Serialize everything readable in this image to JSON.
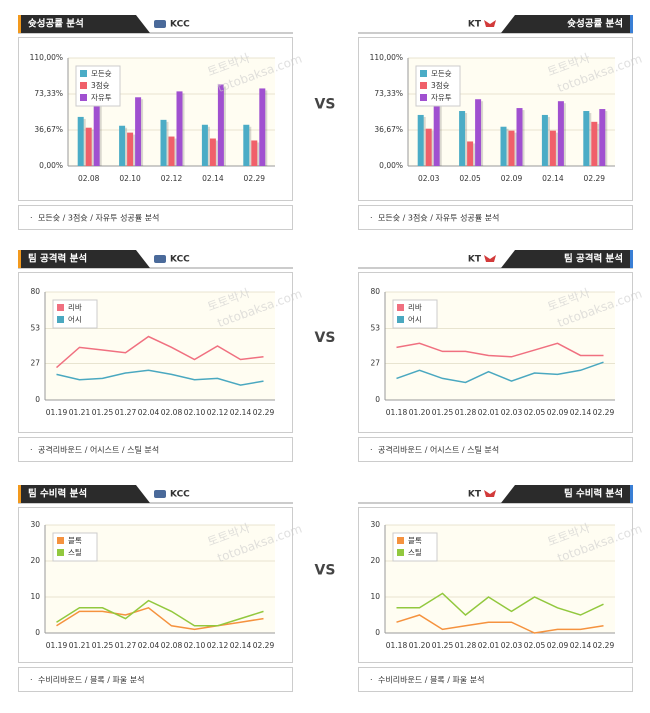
{
  "vs_label": "VS",
  "watermark": [
    "토토박사",
    "totobaksa.com"
  ],
  "chart_data": [
    {
      "type": "bar",
      "title": "슛성공률 분석",
      "team": "KCC",
      "side": "left",
      "footer": "모든슛 / 3점슛 / 자유투 성공률 분석",
      "categories": [
        "02.08",
        "02.10",
        "02.12",
        "02.14",
        "02.29"
      ],
      "series": [
        {
          "name": "모든슛",
          "color": "#4bacc6",
          "values": [
            50,
            41,
            47,
            42,
            42
          ]
        },
        {
          "name": "3점슛",
          "color": "#f0606a",
          "values": [
            39,
            34,
            30,
            28,
            26
          ]
        },
        {
          "name": "자유투",
          "color": "#a050d0",
          "values": [
            65,
            70,
            76,
            83,
            79
          ]
        }
      ],
      "ylim": [
        0,
        110
      ],
      "yticks": [
        {
          "value": 0,
          "label": "0,00%"
        },
        {
          "value": 36.67,
          "label": "36,67%"
        },
        {
          "value": 73.33,
          "label": "73,33%"
        },
        {
          "value": 110,
          "label": "110,00%"
        }
      ]
    },
    {
      "type": "bar",
      "title": "슛성공률 분석",
      "team": "KT",
      "side": "right",
      "footer": "모든슛 / 3점슛 / 자유투 성공률 분석",
      "categories": [
        "02.03",
        "02.05",
        "02.09",
        "02.14",
        "02.29"
      ],
      "series": [
        {
          "name": "모든슛",
          "color": "#4bacc6",
          "values": [
            52,
            56,
            40,
            52,
            56
          ]
        },
        {
          "name": "3점슛",
          "color": "#f0606a",
          "values": [
            38,
            25,
            36,
            36,
            45
          ]
        },
        {
          "name": "자유투",
          "color": "#a050d0",
          "values": [
            64,
            68,
            59,
            66,
            58
          ]
        }
      ],
      "ylim": [
        0,
        110
      ],
      "yticks": [
        {
          "value": 0,
          "label": "0,00%"
        },
        {
          "value": 36.67,
          "label": "36,67%"
        },
        {
          "value": 73.33,
          "label": "73,33%"
        },
        {
          "value": 110,
          "label": "110,00%"
        }
      ]
    },
    {
      "type": "line",
      "title": "팀 공격력 분석",
      "team": "KCC",
      "side": "left",
      "footer": "공격리바운드 / 어시스트 / 스틸 분석",
      "categories": [
        "01.19",
        "01.21",
        "01.25",
        "01.27",
        "02.04",
        "02.08",
        "02.10",
        "02.12",
        "02.14",
        "02.29"
      ],
      "series": [
        {
          "name": "리바",
          "color": "#f07080",
          "values": [
            24,
            39,
            37,
            35,
            47,
            39,
            30,
            40,
            30,
            32
          ]
        },
        {
          "name": "어시",
          "color": "#4aa8c0",
          "values": [
            19,
            15,
            16,
            20,
            22,
            19,
            15,
            16,
            11,
            14
          ]
        }
      ],
      "ylim": [
        0,
        80
      ],
      "yticks": [
        0,
        27,
        53,
        80
      ]
    },
    {
      "type": "line",
      "title": "팀 공격력 분석",
      "team": "KT",
      "side": "right",
      "footer": "공격리바운드 / 어시스트 / 스틸 분석",
      "categories": [
        "01.18",
        "01.20",
        "01.25",
        "01.28",
        "02.01",
        "02.03",
        "02.05",
        "02.09",
        "02.14",
        "02.29"
      ],
      "series": [
        {
          "name": "리바",
          "color": "#f07080",
          "values": [
            39,
            42,
            36,
            36,
            33,
            32,
            37,
            42,
            33,
            33
          ]
        },
        {
          "name": "어시",
          "color": "#4aa8c0",
          "values": [
            16,
            22,
            16,
            13,
            21,
            14,
            20,
            19,
            22,
            28
          ]
        }
      ],
      "ylim": [
        0,
        80
      ],
      "yticks": [
        0,
        27,
        53,
        80
      ]
    },
    {
      "type": "line",
      "title": "팀 수비력 분석",
      "team": "KCC",
      "side": "left",
      "footer": "수비리바운드 / 블록 / 파울 분석",
      "categories": [
        "01.19",
        "01.21",
        "01.25",
        "01.27",
        "02.04",
        "02.08",
        "02.10",
        "02.12",
        "02.14",
        "02.29"
      ],
      "series": [
        {
          "name": "블록",
          "color": "#f5923e",
          "values": [
            2,
            6,
            6,
            5,
            7,
            2,
            1,
            2,
            3,
            4
          ]
        },
        {
          "name": "스틸",
          "color": "#92c83e",
          "values": [
            3,
            7,
            7,
            4,
            9,
            6,
            2,
            2,
            4,
            6
          ]
        }
      ],
      "ylim": [
        0,
        30
      ],
      "yticks": [
        0,
        10,
        20,
        30
      ]
    },
    {
      "type": "line",
      "title": "팀 수비력 분석",
      "team": "KT",
      "side": "right",
      "footer": "수비리바운드 / 블록 / 파울 분석",
      "categories": [
        "01.18",
        "01.20",
        "01.25",
        "01.28",
        "02.01",
        "02.03",
        "02.05",
        "02.09",
        "02.14",
        "02.29"
      ],
      "series": [
        {
          "name": "블록",
          "color": "#f5923e",
          "values": [
            3,
            5,
            1,
            2,
            3,
            3,
            0,
            1,
            1,
            2
          ]
        },
        {
          "name": "스틸",
          "color": "#92c83e",
          "values": [
            7,
            7,
            11,
            5,
            10,
            6,
            10,
            7,
            5,
            8
          ]
        }
      ],
      "ylim": [
        0,
        30
      ],
      "yticks": [
        0,
        10,
        20,
        30
      ]
    }
  ]
}
